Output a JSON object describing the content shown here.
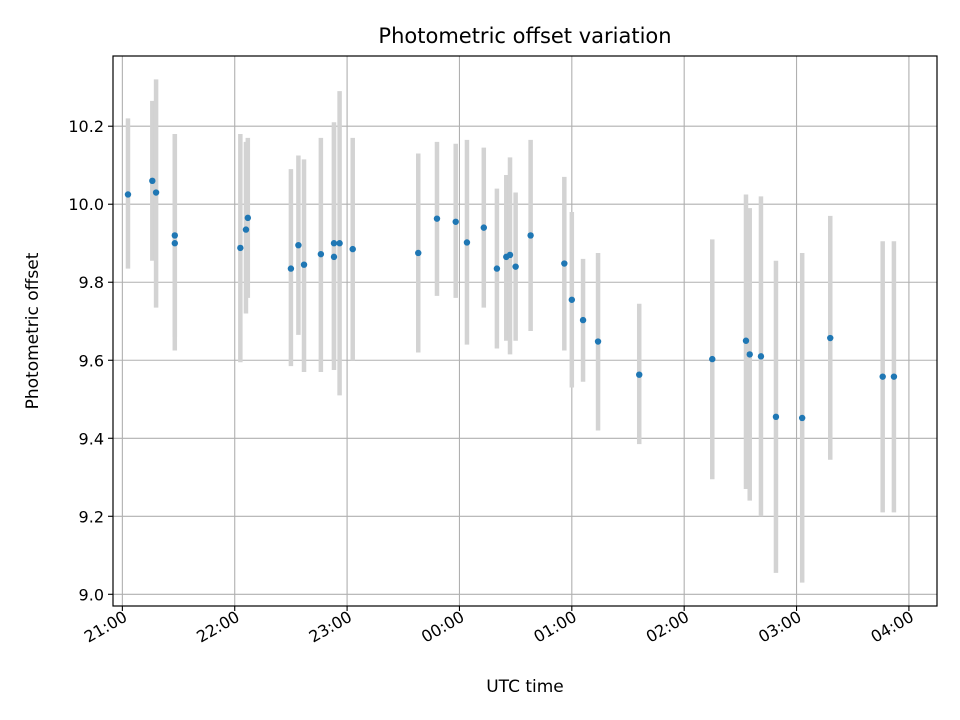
{
  "chart_data": {
    "type": "scatter",
    "title": "Photometric offset variation",
    "xlabel": "UTC time",
    "ylabel": "Photometric offset",
    "x_unit": "UTC time (HH:MM), night spanning midnight",
    "xlim": [
      "20:55",
      "04:15"
    ],
    "ylim": [
      8.97,
      10.38
    ],
    "x_ticks": [
      "21:00",
      "22:00",
      "23:00",
      "00:00",
      "01:00",
      "02:00",
      "03:00",
      "04:00"
    ],
    "y_ticks": [
      "9.0",
      "9.2",
      "9.4",
      "9.6",
      "9.8",
      "10.0",
      "10.2"
    ],
    "grid": true,
    "colors": {
      "marker": "#1f77b4",
      "errorbar": "#d3d3d3",
      "grid": "#b0b0b0"
    },
    "series": [
      {
        "points": [
          {
            "x": "21:03",
            "y": 10.025,
            "low": 9.835,
            "high": 10.22
          },
          {
            "x": "21:16",
            "y": 10.06,
            "low": 9.855,
            "high": 10.265
          },
          {
            "x": "21:18",
            "y": 10.03,
            "low": 9.735,
            "high": 10.32
          },
          {
            "x": "21:28",
            "y": 9.9,
            "low": 9.625,
            "high": 10.18
          },
          {
            "x": "21:28",
            "y": 9.92,
            "low": 9.66,
            "high": 10.18
          },
          {
            "x": "22:03",
            "y": 9.888,
            "low": 9.595,
            "high": 10.18
          },
          {
            "x": "22:06",
            "y": 9.935,
            "low": 9.72,
            "high": 10.16
          },
          {
            "x": "22:07",
            "y": 9.965,
            "low": 9.76,
            "high": 10.17
          },
          {
            "x": "22:30",
            "y": 9.835,
            "low": 9.585,
            "high": 10.09
          },
          {
            "x": "22:34",
            "y": 9.895,
            "low": 9.665,
            "high": 10.125
          },
          {
            "x": "22:37",
            "y": 9.845,
            "low": 9.57,
            "high": 10.115
          },
          {
            "x": "22:46",
            "y": 9.872,
            "low": 9.57,
            "high": 10.17
          },
          {
            "x": "22:53",
            "y": 9.865,
            "low": 9.575,
            "high": 10.21
          },
          {
            "x": "22:53",
            "y": 9.9,
            "low": 9.6,
            "high": 10.2
          },
          {
            "x": "22:56",
            "y": 9.9,
            "low": 9.51,
            "high": 10.29
          },
          {
            "x": "23:03",
            "y": 9.885,
            "low": 9.6,
            "high": 10.17
          },
          {
            "x": "23:38",
            "y": 9.875,
            "low": 9.62,
            "high": 10.13
          },
          {
            "x": "23:48",
            "y": 9.963,
            "low": 9.765,
            "high": 10.16
          },
          {
            "x": "23:58",
            "y": 9.955,
            "low": 9.76,
            "high": 10.155
          },
          {
            "x": "00:04",
            "y": 9.902,
            "low": 9.64,
            "high": 10.165
          },
          {
            "x": "00:13",
            "y": 9.94,
            "low": 9.735,
            "high": 10.145
          },
          {
            "x": "00:20",
            "y": 9.835,
            "low": 9.63,
            "high": 10.04
          },
          {
            "x": "00:25",
            "y": 9.865,
            "low": 9.65,
            "high": 10.075
          },
          {
            "x": "00:27",
            "y": 9.87,
            "low": 9.615,
            "high": 10.12
          },
          {
            "x": "00:30",
            "y": 9.84,
            "low": 9.65,
            "high": 10.03
          },
          {
            "x": "00:38",
            "y": 9.92,
            "low": 9.675,
            "high": 10.165
          },
          {
            "x": "00:56",
            "y": 9.848,
            "low": 9.625,
            "high": 10.07
          },
          {
            "x": "01:00",
            "y": 9.755,
            "low": 9.53,
            "high": 9.98
          },
          {
            "x": "01:06",
            "y": 9.703,
            "low": 9.545,
            "high": 9.86
          },
          {
            "x": "01:14",
            "y": 9.648,
            "low": 9.42,
            "high": 9.875
          },
          {
            "x": "01:36",
            "y": 9.563,
            "low": 9.385,
            "high": 9.745
          },
          {
            "x": "02:15",
            "y": 9.603,
            "low": 9.295,
            "high": 9.91
          },
          {
            "x": "02:33",
            "y": 9.65,
            "low": 9.27,
            "high": 10.025
          },
          {
            "x": "02:35",
            "y": 9.615,
            "low": 9.24,
            "high": 9.99
          },
          {
            "x": "02:41",
            "y": 9.61,
            "low": 9.2,
            "high": 10.02
          },
          {
            "x": "02:49",
            "y": 9.455,
            "low": 9.055,
            "high": 9.855
          },
          {
            "x": "03:03",
            "y": 9.452,
            "low": 9.03,
            "high": 9.875
          },
          {
            "x": "03:18",
            "y": 9.657,
            "low": 9.345,
            "high": 9.97
          },
          {
            "x": "03:46",
            "y": 9.558,
            "low": 9.21,
            "high": 9.905
          },
          {
            "x": "03:52",
            "y": 9.558,
            "low": 9.21,
            "high": 9.905
          }
        ]
      }
    ]
  }
}
